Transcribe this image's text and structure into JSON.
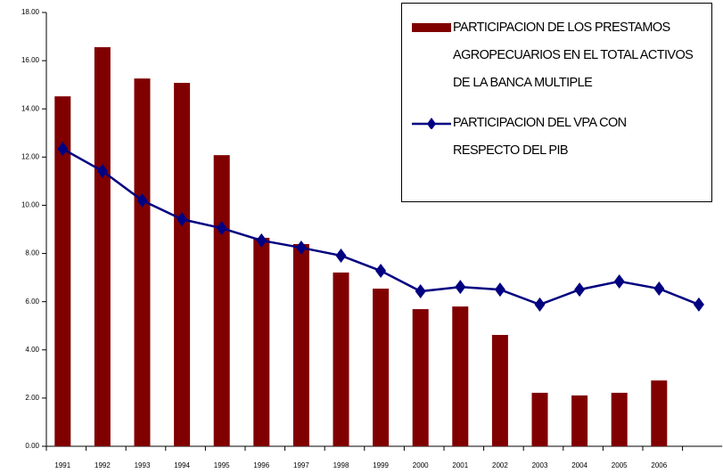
{
  "chart_data": {
    "type": "bar_line",
    "categories": [
      "1991",
      "1992",
      "1993",
      "1994",
      "1995",
      "1996",
      "1997",
      "1998",
      "1999",
      "2000",
      "2001",
      "2002",
      "2003",
      "2004",
      "2005",
      "2006",
      null
    ],
    "series": [
      {
        "name": "PARTICIPACION DE LOS PRESTAMOS AGROPECUARIOS EN EL TOTAL ACTIVOS DE LA BANCA MULTIPLE",
        "type": "bar",
        "color": "#800000",
        "values": [
          14.52,
          16.56,
          15.26,
          15.08,
          12.08,
          8.65,
          8.39,
          7.21,
          6.54,
          5.69,
          5.8,
          4.62,
          2.22,
          2.11,
          2.22,
          2.73,
          null
        ]
      },
      {
        "name": "PARTICIPACION DEL VPA CON RESPECTO DEL PIB",
        "type": "line",
        "color": "#000080",
        "values": [
          12.34,
          11.42,
          10.2,
          9.42,
          9.05,
          8.54,
          8.24,
          7.91,
          7.28,
          6.43,
          6.61,
          6.5,
          5.88,
          6.5,
          6.84,
          6.54,
          5.88
        ]
      }
    ],
    "ylim": [
      0,
      18
    ],
    "yticks": [
      {
        "value": 0,
        "label": "0.00"
      },
      {
        "value": 2,
        "label": "2.00"
      },
      {
        "value": 4,
        "label": "4.00"
      },
      {
        "value": 6,
        "label": "6.00"
      },
      {
        "value": 8,
        "label": "8.00"
      },
      {
        "value": 10,
        "label": "10.00"
      },
      {
        "value": 12,
        "label": "12.00"
      },
      {
        "value": 14,
        "label": "14.00"
      },
      {
        "value": 16,
        "label": "16.00"
      },
      {
        "value": 18,
        "label": "18.00"
      }
    ],
    "legend": "top-right",
    "grid": false
  }
}
